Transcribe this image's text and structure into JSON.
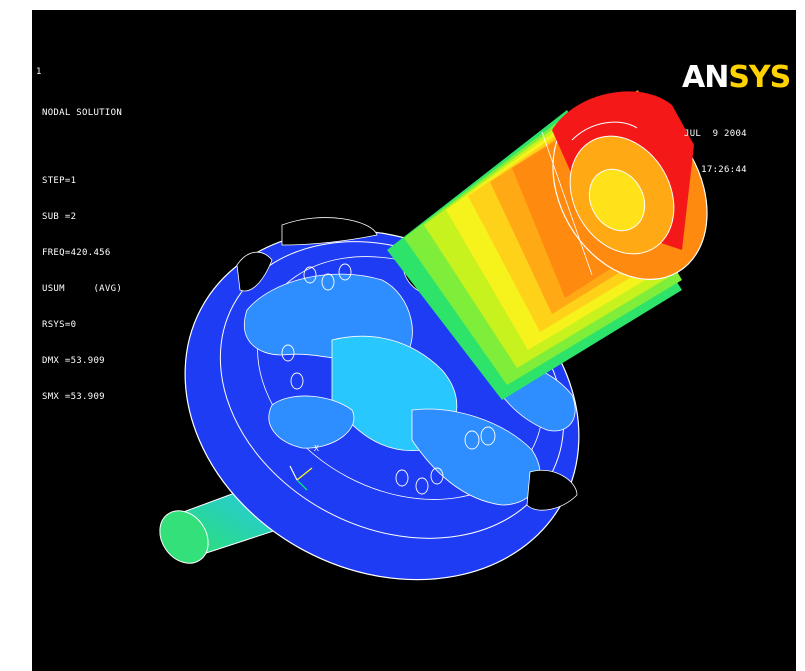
{
  "triad_label": "1",
  "solution": {
    "lines": [
      "NODAL SOLUTION",
      "STEP=1",
      "SUB =2",
      "FREQ=420.456",
      "USUM     (AVG)",
      "RSYS=0",
      "DMX =53.909",
      "SMX =53.909"
    ]
  },
  "logo": {
    "part1": "AN",
    "part2": "SYS"
  },
  "timestamp": {
    "date": "JUL  9 2004",
    "time": "17:26:44"
  },
  "colors": {
    "background": "#000000",
    "contour_blue": "#1f3cf5",
    "contour_lightblue": "#2e8dff",
    "contour_cyan": "#28c8ff",
    "contour_green": "#2ee36a",
    "contour_yellow": "#f6f21c",
    "contour_orange": "#ff8a10",
    "contour_red": "#f51818",
    "edges": "#ffffff"
  },
  "scene": {
    "view": "isometric",
    "shape_display": "mode shape contour"
  }
}
